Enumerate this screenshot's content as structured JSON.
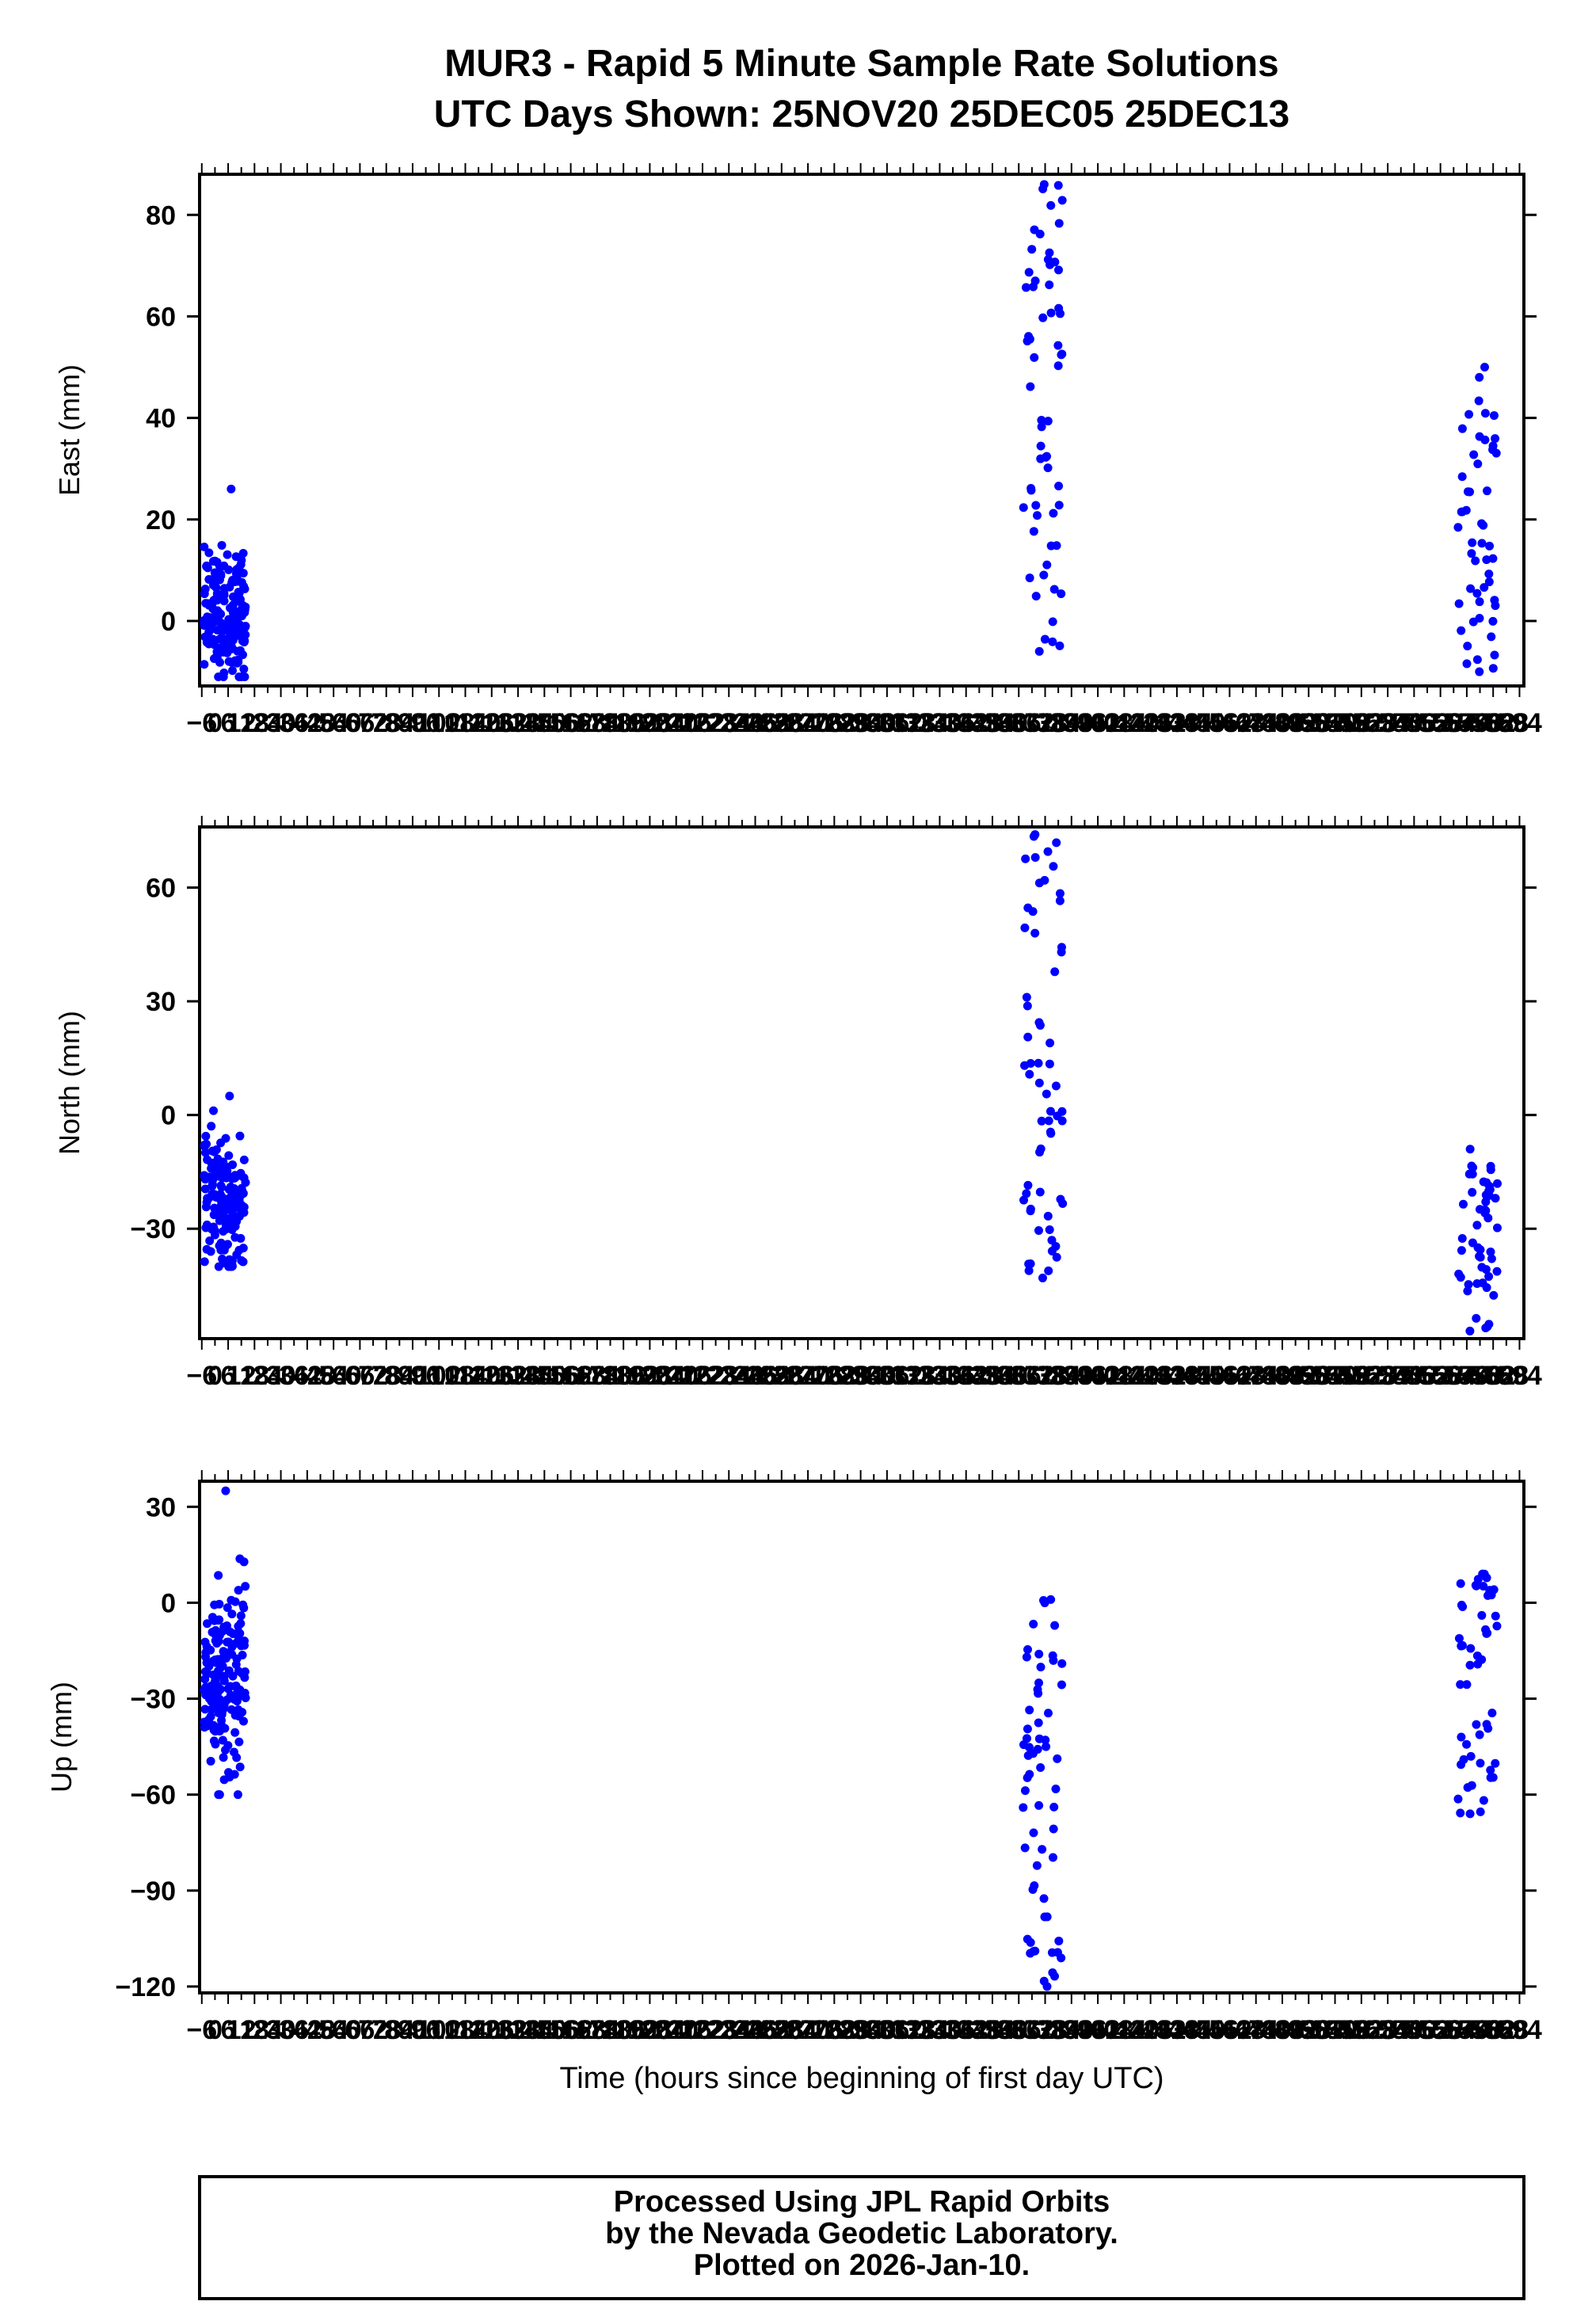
{
  "title_line1": "MUR3 - Rapid 5 Minute Sample Rate Solutions",
  "title_line2": "UTC Days Shown:  25NOV20 25DEC05 25DEC13",
  "footer": {
    "line1": "Processed Using JPL Rapid Orbits",
    "line2": "by the Nevada Geodetic Laboratory.",
    "line3": "Plotted on 2026-Jan-10."
  },
  "colors": {
    "points": "#0000ff",
    "axes": "#000000"
  },
  "chart_data": [
    {
      "type": "scatter",
      "ylabel": "East (mm)",
      "xlim": [
        -7,
        596
      ],
      "ylim": [
        -12.8,
        88
      ],
      "yticks": [
        0,
        20,
        40,
        60,
        80
      ],
      "clusters": [
        {
          "x": [
            -5,
            14
          ],
          "y_range": [
            -11,
            26
          ],
          "count": 170,
          "center": 1.5
        },
        {
          "x": [
            368,
            386
          ],
          "y_range": [
            -6,
            86
          ],
          "count": 60
        },
        {
          "x": [
            566,
            584
          ],
          "y_range": [
            -10,
            50
          ],
          "count": 50
        }
      ]
    },
    {
      "type": "scatter",
      "ylabel": "North (mm)",
      "xlim": [
        -7,
        596
      ],
      "ylim": [
        -59,
        76
      ],
      "yticks": [
        -30,
        0,
        30,
        60
      ],
      "clusters": [
        {
          "x": [
            -5,
            14
          ],
          "y_range": [
            -40,
            5
          ],
          "count": 170,
          "center": -23
        },
        {
          "x": [
            368,
            386
          ],
          "y_range": [
            -43,
            74
          ],
          "count": 60
        },
        {
          "x": [
            566,
            584
          ],
          "y_range": [
            -57,
            -9
          ],
          "count": 50
        }
      ]
    },
    {
      "type": "scatter",
      "ylabel": "Up (mm)",
      "xlabel": "Time (hours since beginning of first day UTC)",
      "xlim": [
        -7,
        596
      ],
      "ylim": [
        -122,
        38
      ],
      "yticks": [
        -120,
        -90,
        -60,
        -30,
        0,
        30
      ],
      "clusters": [
        {
          "x": [
            -5,
            14
          ],
          "y_range": [
            -60,
            35
          ],
          "count": 170,
          "center": -25
        },
        {
          "x": [
            368,
            386
          ],
          "y_range": [
            -120,
            1
          ],
          "count": 60
        },
        {
          "x": [
            566,
            584
          ],
          "y_range": [
            -66,
            9
          ],
          "count": 50
        }
      ]
    }
  ]
}
